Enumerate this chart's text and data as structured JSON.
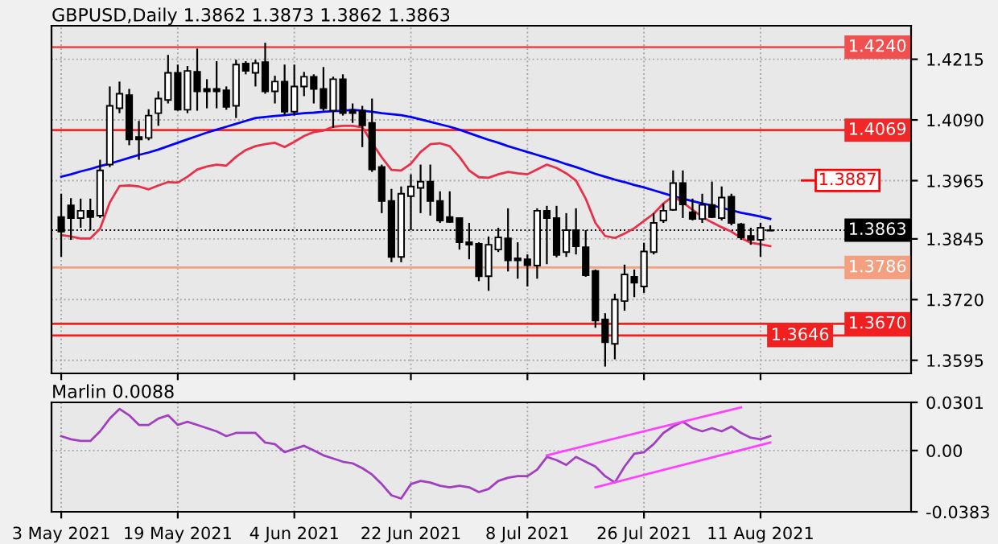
{
  "chart_data": [
    {
      "type": "candlestick",
      "title": "GBPUSD,Daily 1.3862 1.3873 1.3862 1.3863",
      "categories": [
        null,
        null,
        null,
        null,
        null,
        null,
        null,
        null,
        null,
        null,
        null,
        null,
        null,
        null,
        null,
        null,
        null,
        null,
        null,
        null,
        null,
        null,
        null,
        null,
        null,
        null,
        null,
        null,
        null,
        null,
        null,
        null,
        null,
        null,
        null,
        null,
        null,
        null,
        null,
        null,
        null,
        null,
        null,
        null,
        null,
        null,
        null,
        null,
        null,
        null,
        null,
        null,
        null,
        null,
        null,
        null,
        null,
        null,
        null,
        null,
        null,
        null,
        null,
        null,
        null,
        null,
        null,
        null,
        null,
        null,
        null,
        null,
        null,
        null
      ],
      "ohlc": [
        [
          1.389,
          1.3938,
          1.3808,
          1.386
        ],
        [
          1.3914,
          1.3929,
          1.3843,
          1.3888
        ],
        [
          1.3888,
          1.3928,
          1.3868,
          1.3903
        ],
        [
          1.3903,
          1.3928,
          1.3863,
          1.389
        ],
        [
          1.3893,
          1.4008,
          1.3888,
          1.3986
        ],
        [
          1.3998,
          1.4159,
          1.3993,
          1.4119
        ],
        [
          1.4114,
          1.4169,
          1.4104,
          1.4144
        ],
        [
          1.4141,
          1.4154,
          1.4038,
          1.405
        ],
        [
          1.4055,
          1.4088,
          1.4008,
          1.405
        ],
        [
          1.4053,
          1.4112,
          1.4048,
          1.4099
        ],
        [
          1.4104,
          1.4149,
          1.4078,
          1.4134
        ],
        [
          1.4131,
          1.4224,
          1.4124,
          1.4187
        ],
        [
          1.4187,
          1.4204,
          1.4109,
          1.4111
        ],
        [
          1.4111,
          1.4201,
          1.4104,
          1.4191
        ],
        [
          1.4189,
          1.4237,
          1.4109,
          1.4149
        ],
        [
          1.4154,
          1.4174,
          1.4114,
          1.4149
        ],
        [
          1.4154,
          1.4211,
          1.4114,
          1.4149
        ],
        [
          1.4151,
          1.4159,
          1.4111,
          1.4117
        ],
        [
          1.4119,
          1.4214,
          1.4094,
          1.4204
        ],
        [
          1.4206,
          1.4211,
          1.4184,
          1.4191
        ],
        [
          1.4187,
          1.4214,
          1.4159,
          1.4207
        ],
        [
          1.4209,
          1.4249,
          1.4144,
          1.4149
        ],
        [
          1.4149,
          1.4181,
          1.4124,
          1.4169
        ],
        [
          1.4169,
          1.4204,
          1.4099,
          1.4107
        ],
        [
          1.4107,
          1.4204,
          1.4099,
          1.4159
        ],
        [
          1.4159,
          1.4189,
          1.4139,
          1.4179
        ],
        [
          1.4179,
          1.4184,
          1.4124,
          1.4154
        ],
        [
          1.4154,
          1.4199,
          1.4109,
          1.4114
        ],
        [
          1.4109,
          1.4179,
          1.4074,
          1.4174
        ],
        [
          1.4174,
          1.4184,
          1.4099,
          1.4104
        ],
        [
          1.4109,
          1.4124,
          1.4084,
          1.4104
        ],
        [
          1.4109,
          1.4119,
          1.4034,
          1.4079
        ],
        [
          1.4084,
          1.4134,
          1.3983,
          1.3988
        ],
        [
          1.3993,
          1.3998,
          1.3898,
          1.3923
        ],
        [
          1.3923,
          1.3948,
          1.3797,
          1.3808
        ],
        [
          1.3808,
          1.3953,
          1.3797,
          1.3938
        ],
        [
          1.3933,
          1.3978,
          1.3863,
          1.3953
        ],
        [
          1.395,
          1.3998,
          1.3898,
          1.3963
        ],
        [
          1.3963,
          1.3998,
          1.3893,
          1.3923
        ],
        [
          1.3923,
          1.3943,
          1.3878,
          1.3883
        ],
        [
          1.389,
          1.3943,
          1.3878,
          1.388
        ],
        [
          1.3888,
          1.3888,
          1.3823,
          1.3838
        ],
        [
          1.3838,
          1.3878,
          1.3803,
          1.3833
        ],
        [
          1.3835,
          1.3838,
          1.3758,
          1.3768
        ],
        [
          1.3768,
          1.385,
          1.3738,
          1.3833
        ],
        [
          1.3823,
          1.3868,
          1.3818,
          1.3848
        ],
        [
          1.3846,
          1.3908,
          1.3778,
          1.3801
        ],
        [
          1.3805,
          1.3838,
          1.3763,
          1.3801
        ],
        [
          1.3803,
          1.3813,
          1.3747,
          1.3791
        ],
        [
          1.379,
          1.3908,
          1.3763,
          1.3903
        ],
        [
          1.3903,
          1.3913,
          1.3793,
          1.3888
        ],
        [
          1.3888,
          1.3913,
          1.3807,
          1.3812
        ],
        [
          1.3818,
          1.3898,
          1.3808,
          1.3863
        ],
        [
          1.3863,
          1.3908,
          1.3813,
          1.383
        ],
        [
          1.3828,
          1.3863,
          1.3767,
          1.377
        ],
        [
          1.3779,
          1.3782,
          1.3662,
          1.3677
        ],
        [
          1.3679,
          1.3692,
          1.3582,
          1.3632
        ],
        [
          1.3629,
          1.3732,
          1.3597,
          1.372
        ],
        [
          1.3717,
          1.3792,
          1.3697,
          1.3772
        ],
        [
          1.3767,
          1.3782,
          1.3725,
          1.3755
        ],
        [
          1.3747,
          1.3837,
          1.3734,
          1.3819
        ],
        [
          1.3818,
          1.3898,
          1.3813,
          1.3878
        ],
        [
          1.3883,
          1.3918,
          1.3878,
          1.3903
        ],
        [
          1.3905,
          1.3986,
          1.3903,
          1.396
        ],
        [
          1.396,
          1.3986,
          1.3888,
          1.3916
        ],
        [
          1.39,
          1.3928,
          1.3883,
          1.3886
        ],
        [
          1.3886,
          1.3938,
          1.3878,
          1.3915
        ],
        [
          1.3915,
          1.3963,
          1.3888,
          1.389
        ],
        [
          1.3888,
          1.3953,
          1.3883,
          1.393
        ],
        [
          1.3932,
          1.3938,
          1.3873,
          1.3878
        ],
        [
          1.3875,
          1.3878,
          1.3843,
          1.3848
        ],
        [
          1.3851,
          1.3868,
          1.3833,
          1.3843
        ],
        [
          1.3843,
          1.3878,
          1.3808,
          1.3868
        ],
        [
          1.3862,
          1.3873,
          1.3862,
          1.3863
        ]
      ],
      "series": [
        {
          "type": "line",
          "color": "#0000ff",
          "values": [
            1.3973,
            1.3978,
            1.3984,
            1.3989,
            1.3995,
            1.4,
            1.4006,
            1.4012,
            1.4018,
            1.4023,
            1.4029,
            1.4036,
            1.4043,
            1.405,
            1.4057,
            1.4064,
            1.407,
            1.4076,
            1.4082,
            1.4088,
            1.4094,
            1.4096,
            1.4098,
            1.41,
            1.4102,
            1.4104,
            1.4105,
            1.4107,
            1.4108,
            1.4109,
            1.4111,
            1.4109,
            1.4107,
            1.4104,
            1.4102,
            1.41,
            1.4096,
            1.4091,
            1.4086,
            1.4081,
            1.4076,
            1.407,
            1.4063,
            1.4056,
            1.4049,
            1.4043,
            1.4036,
            1.403,
            1.4024,
            1.4018,
            1.4012,
            1.4006,
            1.3999,
            1.3993,
            1.3986,
            1.3979,
            1.3973,
            1.3967,
            1.3962,
            1.3956,
            1.3951,
            1.3945,
            1.3939,
            1.3933,
            1.3928,
            1.3923,
            1.3918,
            1.3914,
            1.3909,
            1.3904,
            1.3899,
            1.3895,
            1.3891,
            1.3886
          ]
        },
        {
          "type": "line",
          "color": "#e8304a",
          "values": [
            1.3853,
            1.385,
            1.3846,
            1.3846,
            1.3866,
            1.392,
            1.3954,
            1.3955,
            1.3953,
            1.3947,
            1.3955,
            1.3962,
            1.3961,
            1.3973,
            1.3988,
            1.3994,
            1.3998,
            1.3996,
            1.4014,
            1.4028,
            1.4036,
            1.404,
            1.4043,
            1.4034,
            1.4045,
            1.4057,
            1.4065,
            1.4068,
            1.4076,
            1.4078,
            1.4078,
            1.4075,
            1.4043,
            1.4013,
            1.3987,
            1.3986,
            1.4,
            1.4024,
            1.404,
            1.4042,
            1.4036,
            1.4014,
            1.3986,
            1.3972,
            1.3971,
            1.3978,
            1.3983,
            1.398,
            1.3978,
            1.3988,
            1.3998,
            1.3991,
            1.398,
            1.3965,
            1.3928,
            1.3878,
            1.3851,
            1.3847,
            1.3856,
            1.3867,
            1.3882,
            1.3897,
            1.3918,
            1.3933,
            1.392,
            1.3905,
            1.389,
            1.3879,
            1.3869,
            1.386,
            1.3847,
            1.3837,
            1.3834,
            1.383
          ]
        }
      ],
      "ylim": [
        1.3568,
        1.4284
      ],
      "yticks": [
        1.4215,
        {
          "value": 1.409,
          "label": "1.4090"
        },
        1.3965,
        1.3845,
        {
          "value": 1.372,
          "label": "1.3720"
        },
        1.3595
      ],
      "ref_lines": [
        {
          "axis": "y",
          "value": 1.424,
          "label": "1.4240",
          "color": "#f05050"
        },
        {
          "axis": "y",
          "value": 1.4069,
          "label": "1.4069",
          "color": "#f02828"
        },
        {
          "axis": "y",
          "value": 1.3863,
          "label": "1.3863",
          "color": "#000000",
          "line_style": "dotted"
        },
        {
          "axis": "y",
          "value": 1.3786,
          "label": "1.3786",
          "color": "#f4a080"
        },
        {
          "axis": "y",
          "value": 1.367,
          "label": "1.3670",
          "color": "#f02020"
        },
        {
          "axis": "y",
          "value": 1.3646,
          "label": "1.3646",
          "color": "#f02020"
        }
      ],
      "annotations": [
        "1.3887"
      ],
      "grid": true,
      "tick_labels": "y"
    },
    {
      "type": "line",
      "title": "Marlin 0.0088",
      "categories": [
        "3 May 2021",
        null,
        null,
        null,
        null,
        null,
        null,
        null,
        null,
        null,
        null,
        null,
        "19 May 2021",
        null,
        null,
        null,
        null,
        null,
        null,
        null,
        null,
        null,
        null,
        null,
        "4 Jun 2021",
        null,
        null,
        null,
        null,
        null,
        null,
        null,
        null,
        null,
        null,
        null,
        "22 Jun 2021",
        null,
        null,
        null,
        null,
        null,
        null,
        null,
        null,
        null,
        null,
        null,
        "8 Jul 2021",
        null,
        null,
        null,
        null,
        null,
        null,
        null,
        null,
        null,
        null,
        null,
        "26 Jul 2021",
        null,
        null,
        null,
        null,
        null,
        null,
        null,
        null,
        null,
        null,
        null,
        "11 Aug 2021",
        null
      ],
      "series": [
        {
          "type": "line",
          "color": "#a040c0",
          "values": [
            0.009,
            0.007,
            0.006,
            0.006,
            0.012,
            0.02,
            0.026,
            0.022,
            0.016,
            0.016,
            0.02,
            0.022,
            0.016,
            0.018,
            0.016,
            0.014,
            0.012,
            0.009,
            0.011,
            0.011,
            0.011,
            0.005,
            0.004,
            -0.001,
            0.001,
            0.003,
            0.0,
            -0.003,
            -0.005,
            -0.007,
            -0.008,
            -0.011,
            -0.015,
            -0.021,
            -0.028,
            -0.03,
            -0.021,
            -0.019,
            -0.02,
            -0.022,
            -0.023,
            -0.022,
            -0.023,
            -0.026,
            -0.024,
            -0.019,
            -0.017,
            -0.016,
            -0.016,
            -0.012,
            -0.004,
            -0.006,
            -0.009,
            -0.004,
            -0.007,
            -0.01,
            -0.016,
            -0.02,
            -0.01,
            -0.002,
            -0.001,
            0.004,
            0.011,
            0.015,
            0.018,
            0.014,
            0.012,
            0.014,
            0.012,
            0.015,
            0.011,
            0.008,
            0.007,
            0.009
          ]
        },
        {
          "type": "line",
          "color": "#ff40ff",
          "values": [
            null,
            null,
            null,
            null,
            null,
            null,
            null,
            null,
            null,
            null,
            null,
            null,
            null,
            null,
            null,
            null,
            null,
            null,
            null,
            null,
            null,
            null,
            null,
            null,
            null,
            null,
            null,
            null,
            null,
            null,
            null,
            null,
            null,
            null,
            null,
            null,
            null,
            null,
            null,
            null,
            null,
            null,
            null,
            null,
            null,
            null,
            null,
            null,
            null,
            null,
            -0.003,
            null,
            null,
            null,
            null,
            null,
            null,
            null,
            null,
            null,
            null,
            null,
            null,
            null,
            null,
            null,
            null,
            null,
            null,
            null,
            0.027,
            null,
            null,
            null
          ]
        },
        {
          "type": "line",
          "color": "#ff40ff",
          "values": [
            null,
            null,
            null,
            null,
            null,
            null,
            null,
            null,
            null,
            null,
            null,
            null,
            null,
            null,
            null,
            null,
            null,
            null,
            null,
            null,
            null,
            null,
            null,
            null,
            null,
            null,
            null,
            null,
            null,
            null,
            null,
            null,
            null,
            null,
            null,
            null,
            null,
            null,
            null,
            null,
            null,
            null,
            null,
            null,
            null,
            null,
            null,
            null,
            null,
            null,
            null,
            null,
            null,
            null,
            null,
            -0.023,
            null,
            null,
            null,
            null,
            null,
            null,
            null,
            null,
            null,
            null,
            null,
            null,
            null,
            null,
            null,
            null,
            null,
            0.005
          ]
        }
      ],
      "ylim": [
        -0.0383,
        0.0301
      ],
      "yticks": [
        0.0301,
        {
          "value": 0,
          "label": "0.00"
        },
        -0.0383
      ],
      "grid": true
    }
  ]
}
